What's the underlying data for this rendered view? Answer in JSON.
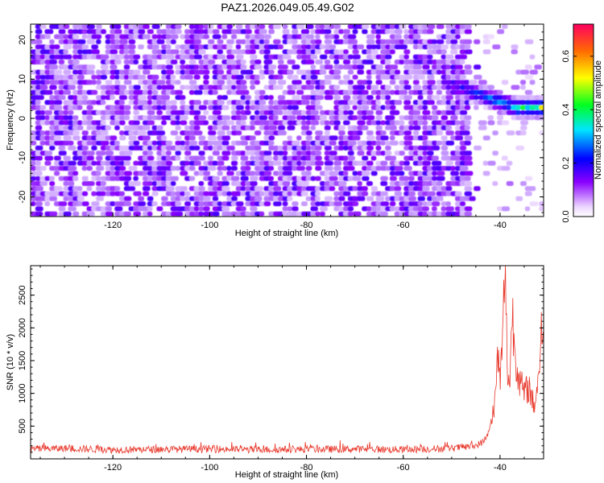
{
  "title": "PAZ1.2026.049.05.49.G02",
  "chart_data": [
    {
      "type": "heatmap",
      "xlabel": "Height of straight line (km)",
      "ylabel": "Frequency (Hz)",
      "xlim": [
        -137,
        -31
      ],
      "ylim": [
        -25,
        24
      ],
      "xticks": [
        -120,
        -100,
        -80,
        -60,
        -40
      ],
      "yticks": [
        -20,
        -10,
        0,
        10,
        20
      ],
      "colorbar": {
        "label": "Normalized spectral amplitude",
        "range": [
          0,
          0.72
        ],
        "ticks": [
          "0.0",
          "0.2",
          "0.4",
          "0.6"
        ],
        "tick_values": [
          0.0,
          0.2,
          0.4,
          0.6
        ]
      },
      "features": [
        {
          "x": [
            -137,
            -47
          ],
          "y": [
            -25,
            24
          ],
          "amplitude_range": [
            0.0,
            0.3
          ],
          "pattern": "noise"
        },
        {
          "x": [
            -53,
            -31
          ],
          "y_start": 9,
          "y_end": 2,
          "amplitude_peak": 0.7,
          "pattern": "signal ridge"
        }
      ]
    },
    {
      "type": "line",
      "xlabel": "Height of straight line (km)",
      "ylabel": "SNR (10 * v/v)",
      "xlim": [
        -137,
        -31
      ],
      "ylim": [
        0,
        2950
      ],
      "xticks": [
        -120,
        -100,
        -80,
        -60,
        -40
      ],
      "yticks": [
        500,
        1000,
        1500,
        2000,
        2500
      ],
      "color": "#e8382c",
      "series": [
        {
          "name": "SNR",
          "x": [
            -137,
            -130,
            -120,
            -110,
            -100,
            -90,
            -80,
            -70,
            -60,
            -50,
            -45,
            -43,
            -42,
            -41,
            -40.5,
            -40,
            -39.5,
            -39,
            -38.5,
            -38,
            -37.5,
            -37,
            -36,
            -35,
            -34,
            -33,
            -32,
            -31.5,
            -31
          ],
          "y": [
            150,
            160,
            140,
            145,
            150,
            140,
            145,
            150,
            140,
            160,
            200,
            280,
            500,
            900,
            1600,
            1200,
            1700,
            3000,
            1400,
            1100,
            2300,
            1700,
            1200,
            1000,
            1100,
            800,
            1250,
            2050,
            1650
          ]
        }
      ]
    }
  ]
}
